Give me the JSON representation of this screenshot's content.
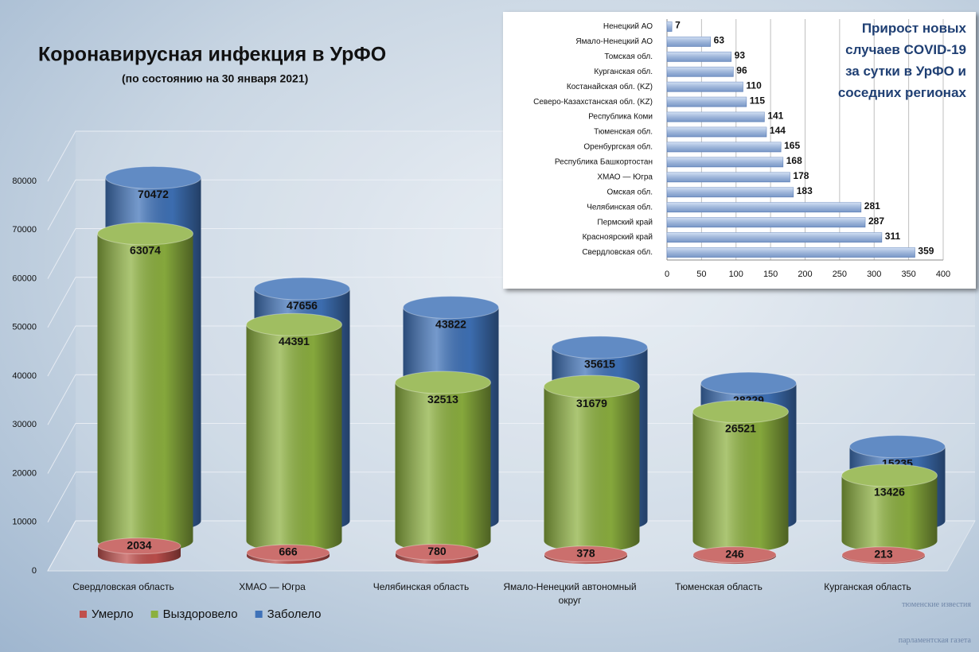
{
  "chart_data": [
    {
      "type": "cylinder3d",
      "title": "Коронавирусная инфекция в УрФО",
      "subtitle": "(по состоянию на 30 января 2021)",
      "categories": [
        "Свердловская область",
        "ХМАО — Югра",
        "Челябинская область",
        "Ямало-Ненецкий автономный округ",
        "Тюменская область",
        "Курганская область"
      ],
      "series": [
        {
          "name": "Умерло",
          "color": "#c0504d",
          "values": [
            2034,
            666,
            780,
            378,
            246,
            213
          ]
        },
        {
          "name": "Выздоровело",
          "color": "#8cb03f",
          "values": [
            63074,
            44391,
            32513,
            31679,
            26521,
            13426
          ]
        },
        {
          "name": "Заболело",
          "color": "#3f72b8",
          "values": [
            70472,
            47656,
            43822,
            35615,
            28229,
            15235
          ]
        }
      ],
      "ylim": [
        0,
        80000
      ],
      "yticks": [
        0,
        10000,
        20000,
        30000,
        40000,
        50000,
        60000,
        70000,
        80000
      ],
      "grid": true,
      "legend": "bottom-left"
    },
    {
      "type": "hbar",
      "title": "Прирост новых случаев COVID-19 за сутки в УрФО и соседних регионах",
      "categories": [
        "Ненецкий АО",
        "Ямало-Ненецкий АО",
        "Томская обл.",
        "Курганская обл.",
        "Костанайская обл. (KZ)",
        "Северо-Казахстанская обл. (KZ)",
        "Республика Коми",
        "Тюменская обл.",
        "Оренбургская обл.",
        "Республика Башкортостан",
        "ХМАО — Югра",
        "Омская обл.",
        "Челябинская обл.",
        "Пермский край",
        "Красноярский край",
        "Свердловская обл."
      ],
      "values": [
        7,
        63,
        93,
        96,
        110,
        115,
        141,
        144,
        165,
        168,
        178,
        183,
        281,
        287,
        311,
        359
      ],
      "color": "#a7c2ea",
      "xlim": [
        0,
        400
      ],
      "xticks": [
        0,
        50,
        100,
        150,
        200,
        250,
        300,
        350,
        400
      ],
      "grid": true
    }
  ],
  "watermark": {
    "brand": "тюменские известия",
    "caption": "парламентская газета"
  }
}
